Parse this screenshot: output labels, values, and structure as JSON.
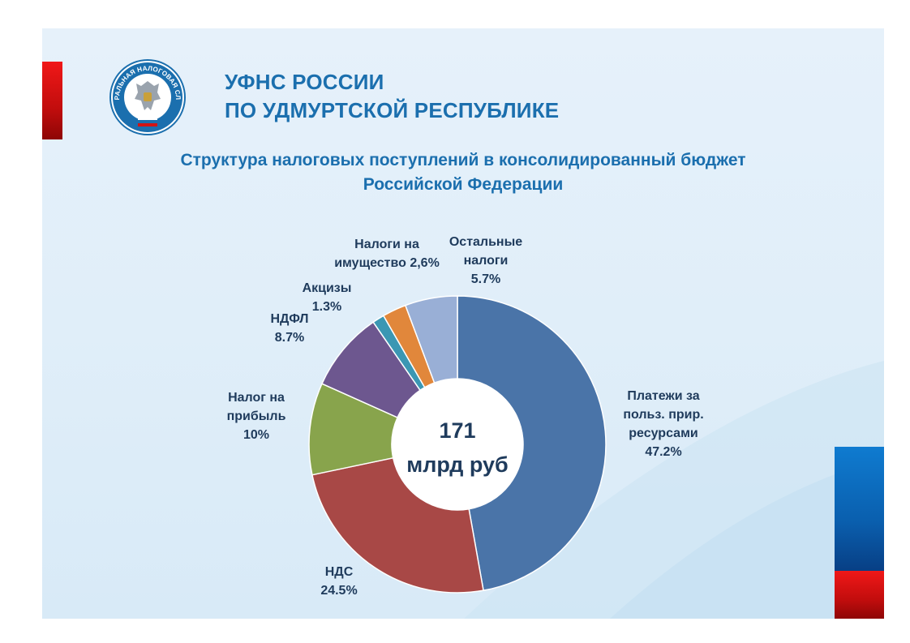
{
  "header": {
    "org_line1": "УФНС РОССИИ",
    "org_line2": "ПО УДМУРТСКОЙ РЕСПУБЛИКЕ",
    "logo_text": "ФЕДЕРАЛЬНАЯ НАЛОГОВАЯ СЛУЖБА"
  },
  "colors": {
    "title": "#1b6fae",
    "accent_red": "#d11414",
    "accent_blue": "#0a5fae"
  },
  "chart_data": {
    "type": "pie",
    "title": [
      "Структура налоговых поступлений в консолидированный бюджет",
      "Российской Федерации"
    ],
    "center_label": [
      "171",
      "млрд руб"
    ],
    "slices": [
      {
        "label_lines": [
          "Платежи за",
          "польз. прир.",
          "ресурсами",
          "47.2%"
        ],
        "value": 47.2,
        "color": "#4a74a8"
      },
      {
        "label_lines": [
          "НДС",
          "24.5%"
        ],
        "value": 24.5,
        "color": "#a84846"
      },
      {
        "label_lines": [
          "Налог на",
          "прибыль",
          "10%"
        ],
        "value": 10,
        "color": "#88a44c"
      },
      {
        "label_lines": [
          "НДФЛ",
          "8.7%"
        ],
        "value": 8.7,
        "color": "#6d578f"
      },
      {
        "label_lines": [
          "Акцизы",
          "1.3%"
        ],
        "value": 1.3,
        "color": "#3b97b3"
      },
      {
        "label_lines": [
          "Налоги на",
          "имущество  2,6%"
        ],
        "value": 2.6,
        "color": "#e1873b"
      },
      {
        "label_lines": [
          "Остальные",
          "налоги",
          "5.7%"
        ],
        "value": 5.7,
        "color": "#99afd6"
      }
    ],
    "legend": "none"
  }
}
